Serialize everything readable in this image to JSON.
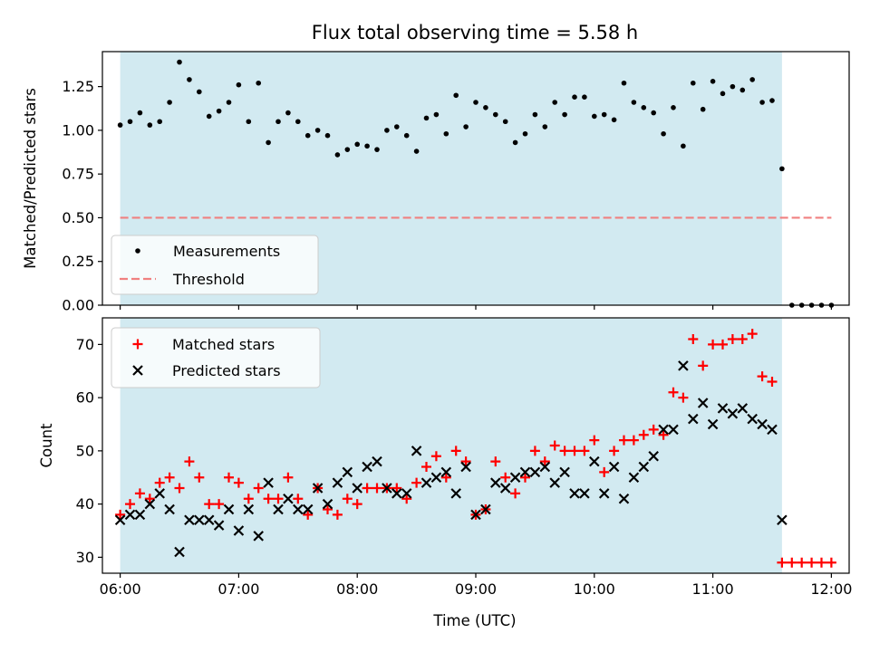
{
  "figure": {
    "title": "Flux total observing time = 5.58 h",
    "xlabel": "Time (UTC)",
    "x_ticks": [
      "06:00",
      "07:00",
      "08:00",
      "09:00",
      "10:00",
      "11:00",
      "12:00"
    ]
  },
  "colors": {
    "shade": "#add8e6",
    "measurement": "#000000",
    "threshold": "#f08080",
    "matched": "#ff0000",
    "predicted": "#000000"
  },
  "chart_data": [
    {
      "type": "scatter",
      "ylabel": "Matched/Predicted stars",
      "xlim": [
        "05:51",
        "12:09"
      ],
      "ylim": [
        0,
        1.45
      ],
      "y_ticks": [
        "0.00",
        "0.25",
        "0.50",
        "0.75",
        "1.00",
        "1.25"
      ],
      "shaded_interval": [
        "06:00",
        "11:35"
      ],
      "legend": {
        "position": "lower-left",
        "entries": [
          "Measurements",
          "Threshold"
        ]
      },
      "threshold": {
        "name": "Threshold",
        "value": 0.5,
        "x_range": [
          "06:00",
          "12:00"
        ]
      },
      "series": [
        {
          "name": "Measurements",
          "x": [
            "06:00",
            "06:05",
            "06:10",
            "06:15",
            "06:20",
            "06:25",
            "06:30",
            "06:35",
            "06:40",
            "06:45",
            "06:50",
            "06:55",
            "07:00",
            "07:05",
            "07:10",
            "07:15",
            "07:20",
            "07:25",
            "07:30",
            "07:35",
            "07:40",
            "07:45",
            "07:50",
            "07:55",
            "08:00",
            "08:05",
            "08:10",
            "08:15",
            "08:20",
            "08:25",
            "08:30",
            "08:35",
            "08:40",
            "08:45",
            "08:50",
            "08:55",
            "09:00",
            "09:05",
            "09:10",
            "09:15",
            "09:20",
            "09:25",
            "09:30",
            "09:35",
            "09:40",
            "09:45",
            "09:50",
            "09:55",
            "10:00",
            "10:05",
            "10:10",
            "10:15",
            "10:20",
            "10:25",
            "10:30",
            "10:35",
            "10:40",
            "10:45",
            "10:50",
            "10:55",
            "11:00",
            "11:05",
            "11:10",
            "11:15",
            "11:20",
            "11:25",
            "11:30",
            "11:35",
            "11:40",
            "11:45",
            "11:50",
            "11:55",
            "12:00"
          ],
          "y": [
            1.03,
            1.05,
            1.1,
            1.03,
            1.05,
            1.16,
            1.39,
            1.29,
            1.22,
            1.08,
            1.11,
            1.16,
            1.26,
            1.05,
            1.27,
            0.93,
            1.05,
            1.1,
            1.05,
            0.97,
            1.0,
            0.97,
            0.86,
            0.89,
            0.92,
            0.91,
            0.89,
            1.0,
            1.02,
            0.97,
            0.88,
            1.07,
            1.09,
            0.98,
            1.2,
            1.02,
            1.16,
            1.13,
            1.09,
            1.05,
            0.93,
            0.98,
            1.09,
            1.02,
            1.16,
            1.09,
            1.19,
            1.19,
            1.08,
            1.09,
            1.06,
            1.27,
            1.16,
            1.13,
            1.1,
            0.98,
            1.13,
            0.91,
            1.27,
            1.12,
            1.28,
            1.21,
            1.25,
            1.23,
            1.29,
            1.16,
            1.17,
            0.78,
            0,
            0,
            0,
            0,
            0
          ]
        }
      ]
    },
    {
      "type": "scatter",
      "ylabel": "Count",
      "xlim": [
        "05:51",
        "12:09"
      ],
      "ylim": [
        27,
        75
      ],
      "y_ticks": [
        "30",
        "40",
        "50",
        "60",
        "70"
      ],
      "shaded_interval": [
        "06:00",
        "11:35"
      ],
      "legend": {
        "position": "top-left",
        "entries": [
          "Matched stars",
          "Predicted stars"
        ]
      },
      "series": [
        {
          "name": "Matched stars",
          "marker": "plus",
          "x": [
            "06:00",
            "06:05",
            "06:10",
            "06:15",
            "06:20",
            "06:25",
            "06:30",
            "06:35",
            "06:40",
            "06:45",
            "06:50",
            "06:55",
            "07:00",
            "07:05",
            "07:10",
            "07:15",
            "07:20",
            "07:25",
            "07:30",
            "07:35",
            "07:40",
            "07:45",
            "07:50",
            "07:55",
            "08:00",
            "08:05",
            "08:10",
            "08:15",
            "08:20",
            "08:25",
            "08:30",
            "08:35",
            "08:40",
            "08:45",
            "08:50",
            "08:55",
            "09:00",
            "09:05",
            "09:10",
            "09:15",
            "09:20",
            "09:25",
            "09:30",
            "09:35",
            "09:40",
            "09:45",
            "09:50",
            "09:55",
            "10:00",
            "10:05",
            "10:10",
            "10:15",
            "10:20",
            "10:25",
            "10:30",
            "10:35",
            "10:40",
            "10:45",
            "10:50",
            "10:55",
            "11:00",
            "11:05",
            "11:10",
            "11:15",
            "11:20",
            "11:25",
            "11:30",
            "11:35",
            "11:40",
            "11:45",
            "11:50",
            "11:55",
            "12:00"
          ],
          "y": [
            38,
            40,
            42,
            41,
            44,
            45,
            43,
            48,
            45,
            40,
            40,
            45,
            44,
            41,
            43,
            41,
            41,
            45,
            41,
            38,
            43,
            39,
            38,
            41,
            40,
            43,
            43,
            43,
            43,
            41,
            44,
            47,
            49,
            45,
            50,
            48,
            38,
            39,
            48,
            45,
            42,
            45,
            50,
            48,
            51,
            50,
            50,
            50,
            52,
            46,
            50,
            52,
            52,
            53,
            54,
            53,
            61,
            60,
            71,
            66,
            70,
            70,
            71,
            71,
            72,
            64,
            63,
            29,
            29,
            29,
            29,
            29,
            29
          ]
        },
        {
          "name": "Predicted stars",
          "marker": "x",
          "x": [
            "06:00",
            "06:05",
            "06:10",
            "06:15",
            "06:20",
            "06:25",
            "06:30",
            "06:35",
            "06:40",
            "06:45",
            "06:50",
            "06:55",
            "07:00",
            "07:05",
            "07:10",
            "07:15",
            "07:20",
            "07:25",
            "07:30",
            "07:35",
            "07:40",
            "07:45",
            "07:50",
            "07:55",
            "08:00",
            "08:05",
            "08:10",
            "08:15",
            "08:20",
            "08:25",
            "08:30",
            "08:35",
            "08:40",
            "08:45",
            "08:50",
            "08:55",
            "09:00",
            "09:05",
            "09:10",
            "09:15",
            "09:20",
            "09:25",
            "09:30",
            "09:35",
            "09:40",
            "09:45",
            "09:50",
            "09:55",
            "10:00",
            "10:05",
            "10:10",
            "10:15",
            "10:20",
            "10:25",
            "10:30",
            "10:35",
            "10:40",
            "10:45",
            "10:50",
            "10:55",
            "11:00",
            "11:05",
            "11:10",
            "11:15",
            "11:20",
            "11:25",
            "11:30",
            "11:35"
          ],
          "y": [
            37,
            38,
            38,
            40,
            42,
            39,
            31,
            37,
            37,
            37,
            36,
            39,
            35,
            39,
            34,
            44,
            39,
            41,
            39,
            39,
            43,
            40,
            44,
            46,
            43,
            47,
            48,
            43,
            42,
            42,
            50,
            44,
            45,
            46,
            42,
            47,
            38,
            39,
            44,
            43,
            45,
            46,
            46,
            47,
            44,
            46,
            42,
            42,
            48,
            42,
            47,
            41,
            45,
            47,
            49,
            54,
            54,
            66,
            56,
            59,
            55,
            58,
            57,
            58,
            56,
            55,
            54,
            37
          ]
        }
      ]
    }
  ]
}
